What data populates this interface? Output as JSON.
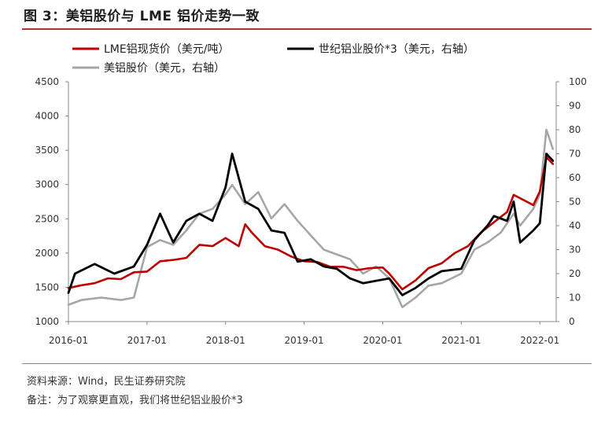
{
  "header": {
    "title": "图 3：美铝股价与 LME 铝价走势一致"
  },
  "notes": {
    "source": "资料来源：Wind，民生证券研究院",
    "remark": "备注：为了观察更直观，我们将世纪铝业股价*3"
  },
  "colors": {
    "accent": "#b0312c",
    "lme": "#c00000",
    "century": "#000000",
    "alcoa": "#a6a6a6"
  },
  "chart_data": {
    "type": "line",
    "title": "",
    "xlabel": "",
    "ylabel": "",
    "x_ticks": [
      "2016-01",
      "2017-01",
      "2018-01",
      "2019-01",
      "2020-01",
      "2021-01",
      "2022-01"
    ],
    "y_left": {
      "range": [
        1000,
        4500
      ],
      "ticks": [
        1000,
        1500,
        2000,
        2500,
        3000,
        3500,
        4000,
        4500
      ]
    },
    "y_right": {
      "range": [
        0,
        100
      ],
      "ticks": [
        0,
        10,
        20,
        30,
        40,
        50,
        60,
        70,
        80,
        90,
        100
      ]
    },
    "grid": false,
    "legend_position": "top",
    "series": [
      {
        "name": "LME铝现货价（美元/吨）",
        "axis": "left",
        "color": "#c00000",
        "x": [
          "2016-01",
          "2016-03",
          "2016-05",
          "2016-07",
          "2016-09",
          "2016-11",
          "2017-01",
          "2017-03",
          "2017-05",
          "2017-07",
          "2017-09",
          "2017-11",
          "2018-01",
          "2018-03",
          "2018-04",
          "2018-05",
          "2018-07",
          "2018-09",
          "2018-11",
          "2019-01",
          "2019-03",
          "2019-05",
          "2019-07",
          "2019-09",
          "2019-11",
          "2020-01",
          "2020-02",
          "2020-04",
          "2020-06",
          "2020-08",
          "2020-10",
          "2020-12",
          "2021-02",
          "2021-04",
          "2021-06",
          "2021-08",
          "2021-09",
          "2021-10",
          "2021-12",
          "2022-01",
          "2022-02",
          "2022-03"
        ],
        "values": [
          1490,
          1530,
          1560,
          1630,
          1620,
          1720,
          1730,
          1880,
          1900,
          1930,
          2120,
          2100,
          2220,
          2100,
          2420,
          2300,
          2100,
          2050,
          1950,
          1880,
          1870,
          1800,
          1800,
          1750,
          1780,
          1790,
          1700,
          1470,
          1600,
          1780,
          1850,
          2000,
          2100,
          2300,
          2450,
          2600,
          2850,
          2800,
          2700,
          2900,
          3400,
          3300
        ]
      },
      {
        "name": "世纪铝业股价*3（美元，右轴）",
        "axis": "right",
        "color": "#000000",
        "x": [
          "2016-01",
          "2016-02",
          "2016-05",
          "2016-08",
          "2016-11",
          "2017-01",
          "2017-03",
          "2017-05",
          "2017-07",
          "2017-09",
          "2017-11",
          "2018-01",
          "2018-02",
          "2018-04",
          "2018-06",
          "2018-08",
          "2018-10",
          "2018-12",
          "2019-02",
          "2019-04",
          "2019-06",
          "2019-08",
          "2019-10",
          "2019-12",
          "2020-02",
          "2020-04",
          "2020-06",
          "2020-08",
          "2020-10",
          "2021-01",
          "2021-03",
          "2021-05",
          "2021-06",
          "2021-08",
          "2021-09",
          "2021-10",
          "2021-12",
          "2022-01",
          "2022-02",
          "2022-03"
        ],
        "values": [
          12,
          20,
          24,
          20,
          23,
          32,
          45,
          33,
          42,
          45,
          42,
          56,
          70,
          50,
          47,
          38,
          37,
          25,
          26,
          23,
          22,
          18,
          16,
          17,
          18,
          11,
          14,
          18,
          21,
          22,
          34,
          40,
          44,
          42,
          50,
          33,
          38,
          41,
          70,
          67
        ]
      },
      {
        "name": "美铝股价（美元，右轴）",
        "axis": "right",
        "color": "#a6a6a6",
        "x": [
          "2016-01",
          "2016-03",
          "2016-06",
          "2016-09",
          "2016-11",
          "2017-01",
          "2017-03",
          "2017-05",
          "2017-07",
          "2017-09",
          "2017-11",
          "2018-01",
          "2018-02",
          "2018-04",
          "2018-06",
          "2018-08",
          "2018-10",
          "2018-12",
          "2019-02",
          "2019-04",
          "2019-06",
          "2019-08",
          "2019-10",
          "2019-12",
          "2020-02",
          "2020-04",
          "2020-06",
          "2020-08",
          "2020-10",
          "2021-01",
          "2021-03",
          "2021-05",
          "2021-07",
          "2021-09",
          "2021-10",
          "2021-12",
          "2022-01",
          "2022-02",
          "2022-03"
        ],
        "values": [
          7,
          9,
          10,
          9,
          10,
          31,
          34,
          32,
          38,
          45,
          47,
          53,
          57,
          49,
          54,
          43,
          49,
          42,
          36,
          30,
          28,
          26,
          20,
          23,
          18,
          6,
          10,
          15,
          16,
          20,
          30,
          33,
          37,
          45,
          40,
          47,
          53,
          80,
          72
        ]
      }
    ]
  }
}
